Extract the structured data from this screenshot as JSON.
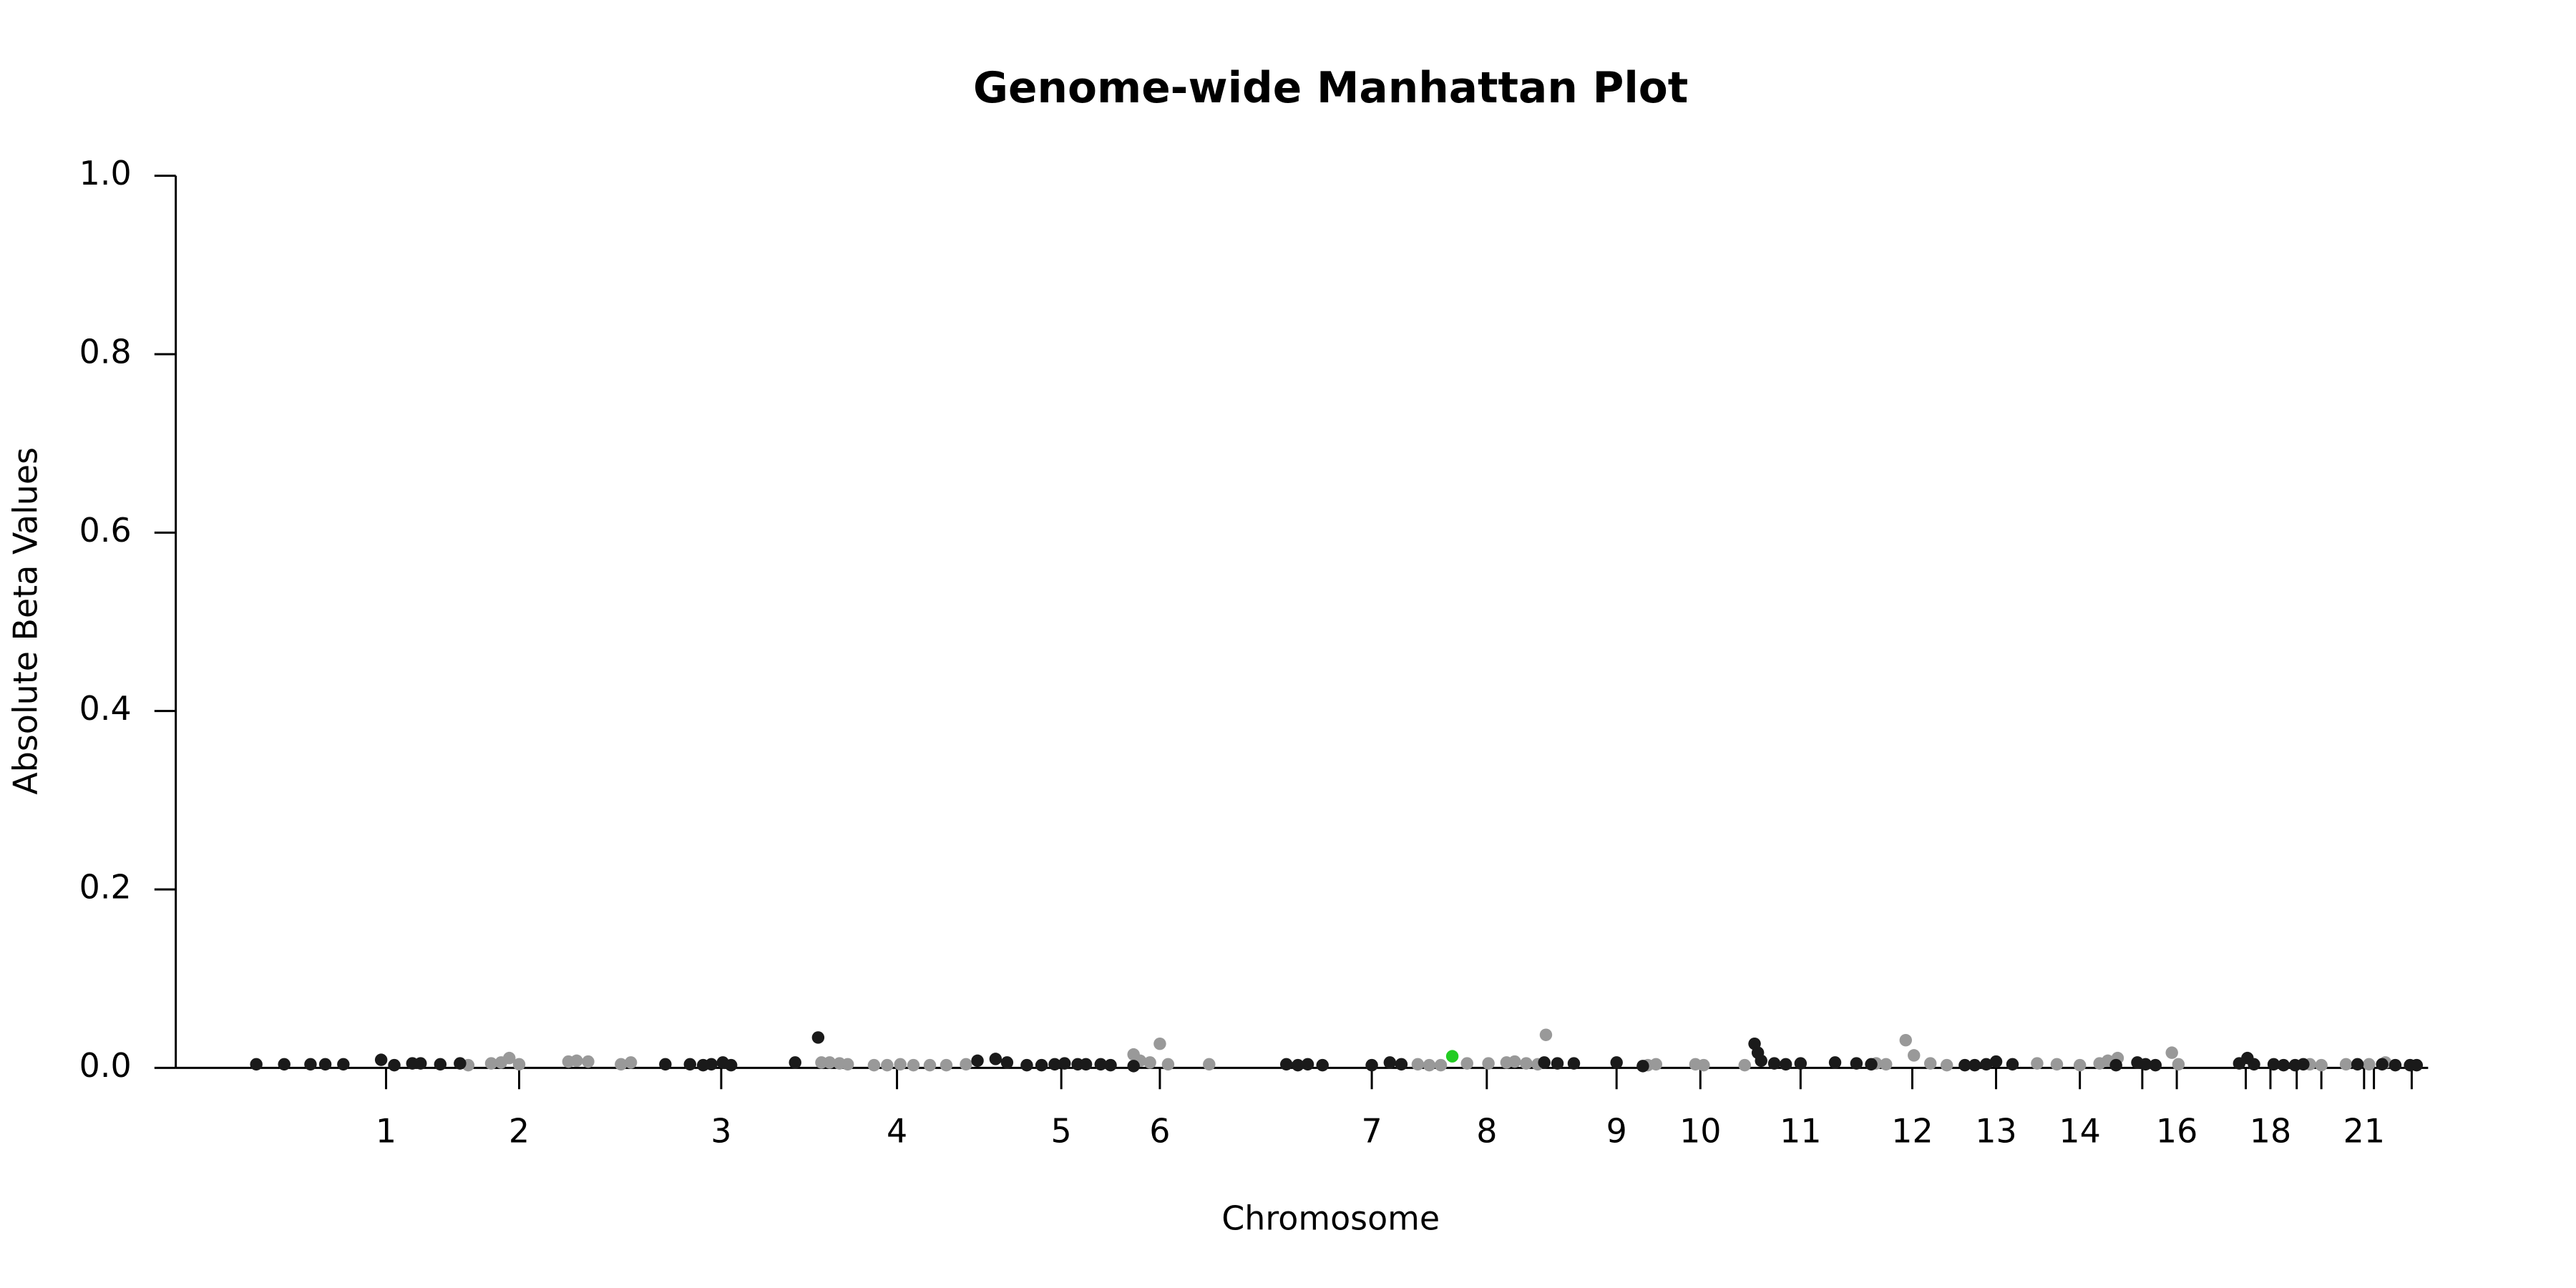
{
  "chart_data": {
    "type": "scatter",
    "title": "Genome-wide Manhattan Plot",
    "xlabel": "Chromosome",
    "ylabel": "Absolute Beta Values",
    "xlim": [
      0,
      1371
    ],
    "ylim": [
      0,
      1
    ],
    "yticks": [
      {
        "value": 0,
        "label": "0.0"
      },
      0.2,
      0.4,
      0.6,
      0.8,
      {
        "value": 1,
        "label": "1.0"
      }
    ],
    "xticks": [
      {
        "value": 128,
        "label": "1"
      },
      {
        "value": 209,
        "label": "2"
      },
      {
        "value": 332,
        "label": "3"
      },
      {
        "value": 439,
        "label": "4"
      },
      {
        "value": 539,
        "label": "5"
      },
      {
        "value": 599,
        "label": "6"
      },
      {
        "value": 728,
        "label": "7"
      },
      {
        "value": 798,
        "label": "8"
      },
      {
        "value": 877,
        "label": "9"
      },
      {
        "value": 928,
        "label": "10"
      },
      {
        "value": 989,
        "label": "11"
      },
      {
        "value": 1057,
        "label": "12"
      },
      {
        "value": 1108,
        "label": "13"
      },
      {
        "value": 1159,
        "label": "14"
      },
      {
        "value": 1218,
        "label": "16"
      },
      {
        "value": 1275,
        "label": "18"
      },
      {
        "value": 1332,
        "label": "21"
      }
    ],
    "xticks_minor": [
      1197,
      1260,
      1291,
      1306,
      1338,
      1361
    ],
    "series": [
      {
        "color": "#999999",
        "x": [
          178,
          192,
          198,
          203,
          209,
          239,
          244,
          251,
          271,
          277,
          393,
          398,
          404,
          409,
          425,
          433,
          441,
          449,
          459,
          469,
          481,
          583,
          587,
          593,
          599,
          604,
          629,
          756,
          763,
          770,
          786,
          799,
          810,
          815,
          822,
          829,
          834,
          896,
          901,
          925,
          930,
          955,
          1035,
          1041,
          1053,
          1058,
          1068,
          1078,
          1133,
          1145,
          1159,
          1171,
          1176,
          1182,
          1215,
          1219,
          1299,
          1306,
          1321,
          1335,
          1345
        ],
        "values": [
          0.003,
          0.005,
          0.006,
          0.011,
          0.004,
          0.007,
          0.008,
          0.007,
          0.004,
          0.006,
          0.006,
          0.006,
          0.005,
          0.004,
          0.003,
          0.003,
          0.004,
          0.003,
          0.003,
          0.003,
          0.004,
          0.015,
          0.008,
          0.006,
          0.027,
          0.004,
          0.004,
          0.004,
          0.003,
          0.003,
          0.005,
          0.005,
          0.006,
          0.007,
          0.005,
          0.004,
          0.037,
          0.003,
          0.004,
          0.004,
          0.003,
          0.003,
          0.005,
          0.004,
          0.031,
          0.014,
          0.005,
          0.003,
          0.005,
          0.004,
          0.003,
          0.005,
          0.008,
          0.011,
          0.017,
          0.004,
          0.004,
          0.003,
          0.004,
          0.004,
          0.006
        ]
      },
      {
        "color": "#1a1a1a",
        "x": [
          49,
          66,
          82,
          91,
          102,
          125,
          133,
          144,
          149,
          161,
          173,
          298,
          313,
          321,
          326,
          333,
          338,
          377,
          391,
          488,
          499,
          506,
          518,
          527,
          535,
          541,
          549,
          554,
          563,
          569,
          583,
          676,
          683,
          689,
          698,
          728,
          739,
          746,
          833,
          841,
          851,
          877,
          893,
          961,
          963,
          965,
          973,
          980,
          989,
          1010,
          1023,
          1032,
          1089,
          1095,
          1102,
          1108,
          1118,
          1181,
          1194,
          1199,
          1205,
          1256,
          1261,
          1265,
          1277,
          1283,
          1290,
          1295,
          1328,
          1343,
          1351,
          1360,
          1364
        ],
        "values": [
          0.004,
          0.004,
          0.004,
          0.004,
          0.004,
          0.009,
          0.003,
          0.005,
          0.005,
          0.004,
          0.005,
          0.004,
          0.004,
          0.003,
          0.004,
          0.006,
          0.003,
          0.006,
          0.034,
          0.008,
          0.01,
          0.006,
          0.003,
          0.003,
          0.004,
          0.005,
          0.004,
          0.004,
          0.004,
          0.003,
          0.002,
          0.004,
          0.003,
          0.004,
          0.003,
          0.003,
          0.006,
          0.004,
          0.006,
          0.005,
          0.005,
          0.006,
          0.002,
          0.027,
          0.017,
          0.008,
          0.005,
          0.004,
          0.005,
          0.006,
          0.005,
          0.004,
          0.003,
          0.003,
          0.004,
          0.007,
          0.004,
          0.003,
          0.006,
          0.004,
          0.003,
          0.005,
          0.011,
          0.004,
          0.004,
          0.003,
          0.003,
          0.004,
          0.004,
          0.004,
          0.003,
          0.003,
          0.003
        ]
      },
      {
        "color": "#22cc22",
        "x": [
          777
        ],
        "values": [
          0.013
        ]
      }
    ]
  }
}
